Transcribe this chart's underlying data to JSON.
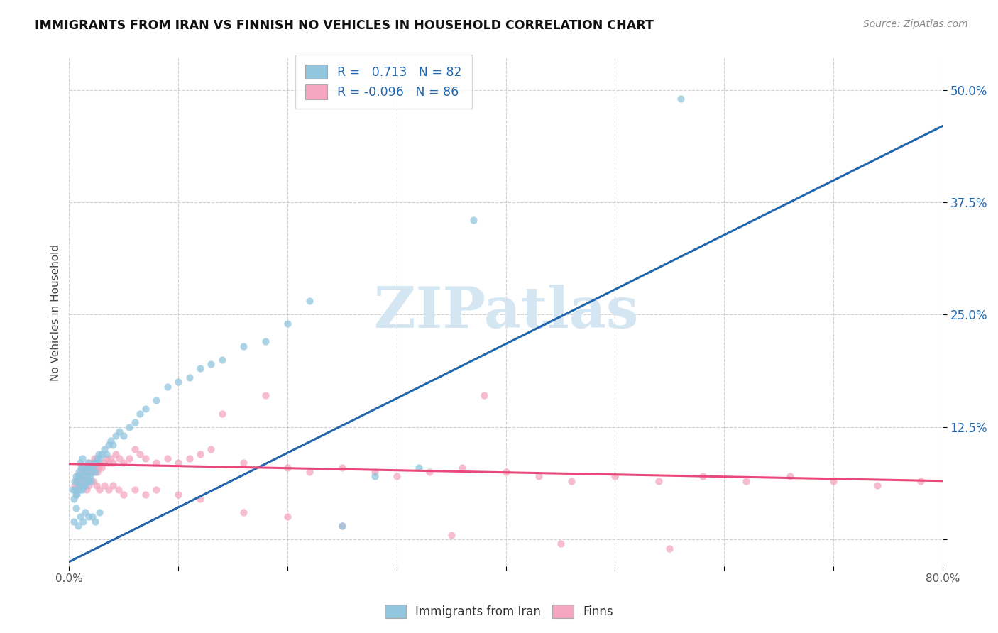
{
  "title": "IMMIGRANTS FROM IRAN VS FINNISH NO VEHICLES IN HOUSEHOLD CORRELATION CHART",
  "source": "Source: ZipAtlas.com",
  "ylabel": "No Vehicles in Household",
  "legend_label1": "Immigrants from Iran",
  "legend_label2": "Finns",
  "r1": 0.713,
  "n1": 82,
  "r2": -0.096,
  "n2": 86,
  "xmin": 0.0,
  "xmax": 0.8,
  "ymin": -0.03,
  "ymax": 0.535,
  "yticks": [
    0.0,
    0.125,
    0.25,
    0.375,
    0.5
  ],
  "ytick_labels": [
    "",
    "12.5%",
    "25.0%",
    "37.5%",
    "50.0%"
  ],
  "xtick_labels_positions": [
    0.0,
    0.8
  ],
  "xtick_labels_values": [
    "0.0%",
    "80.0%"
  ],
  "xtick_minor_positions": [
    0.1,
    0.2,
    0.3,
    0.4,
    0.5,
    0.6,
    0.7
  ],
  "color_iran": "#92c5de",
  "color_finn": "#f4a6c0",
  "trendline_iran_color": "#2166ac",
  "trendline_finn_color": "#e8497a",
  "scatter_alpha": 0.75,
  "dot_size": 55,
  "watermark_color": "#d5e6f3",
  "background_color": "#ffffff",
  "iran_trendline_x0": 0.0,
  "iran_trendline_y0": -0.025,
  "iran_trendline_x1": 0.8,
  "iran_trendline_y1": 0.46,
  "finn_trendline_x0": 0.0,
  "finn_trendline_y0": 0.084,
  "finn_trendline_x1": 0.8,
  "finn_trendline_y1": 0.065,
  "iran_x": [
    0.003,
    0.004,
    0.005,
    0.005,
    0.006,
    0.006,
    0.007,
    0.007,
    0.008,
    0.008,
    0.009,
    0.009,
    0.01,
    0.01,
    0.01,
    0.011,
    0.011,
    0.012,
    0.012,
    0.012,
    0.013,
    0.013,
    0.014,
    0.014,
    0.015,
    0.015,
    0.016,
    0.016,
    0.017,
    0.017,
    0.018,
    0.018,
    0.019,
    0.02,
    0.02,
    0.021,
    0.022,
    0.023,
    0.024,
    0.025,
    0.026,
    0.027,
    0.028,
    0.03,
    0.032,
    0.034,
    0.036,
    0.038,
    0.04,
    0.043,
    0.046,
    0.05,
    0.055,
    0.06,
    0.065,
    0.07,
    0.08,
    0.09,
    0.1,
    0.11,
    0.12,
    0.13,
    0.14,
    0.16,
    0.18,
    0.2,
    0.22,
    0.25,
    0.28,
    0.32,
    0.37,
    0.56,
    0.004,
    0.006,
    0.008,
    0.01,
    0.013,
    0.015,
    0.018,
    0.021,
    0.024,
    0.028
  ],
  "iran_y": [
    0.055,
    0.045,
    0.055,
    0.065,
    0.05,
    0.07,
    0.05,
    0.065,
    0.055,
    0.07,
    0.06,
    0.075,
    0.055,
    0.07,
    0.085,
    0.06,
    0.08,
    0.055,
    0.07,
    0.09,
    0.065,
    0.08,
    0.06,
    0.075,
    0.06,
    0.075,
    0.065,
    0.08,
    0.07,
    0.085,
    0.065,
    0.08,
    0.07,
    0.065,
    0.08,
    0.075,
    0.08,
    0.085,
    0.075,
    0.085,
    0.09,
    0.095,
    0.09,
    0.095,
    0.1,
    0.095,
    0.105,
    0.11,
    0.105,
    0.115,
    0.12,
    0.115,
    0.125,
    0.13,
    0.14,
    0.145,
    0.155,
    0.17,
    0.175,
    0.18,
    0.19,
    0.195,
    0.2,
    0.215,
    0.22,
    0.24,
    0.265,
    0.015,
    0.07,
    0.08,
    0.355,
    0.49,
    0.02,
    0.035,
    0.015,
    0.025,
    0.02,
    0.03,
    0.025,
    0.025,
    0.02,
    0.03
  ],
  "finn_x": [
    0.005,
    0.006,
    0.007,
    0.008,
    0.009,
    0.01,
    0.011,
    0.012,
    0.013,
    0.014,
    0.015,
    0.016,
    0.017,
    0.018,
    0.019,
    0.02,
    0.021,
    0.022,
    0.023,
    0.024,
    0.025,
    0.026,
    0.027,
    0.028,
    0.03,
    0.032,
    0.034,
    0.036,
    0.038,
    0.04,
    0.043,
    0.046,
    0.05,
    0.055,
    0.06,
    0.065,
    0.07,
    0.08,
    0.09,
    0.1,
    0.11,
    0.12,
    0.13,
    0.14,
    0.16,
    0.18,
    0.2,
    0.22,
    0.25,
    0.28,
    0.3,
    0.33,
    0.36,
    0.38,
    0.4,
    0.43,
    0.46,
    0.5,
    0.54,
    0.58,
    0.62,
    0.66,
    0.7,
    0.74,
    0.78,
    0.016,
    0.018,
    0.022,
    0.025,
    0.028,
    0.032,
    0.036,
    0.04,
    0.045,
    0.05,
    0.06,
    0.07,
    0.08,
    0.1,
    0.12,
    0.16,
    0.2,
    0.25,
    0.35,
    0.45,
    0.55
  ],
  "finn_y": [
    0.06,
    0.055,
    0.065,
    0.06,
    0.07,
    0.065,
    0.075,
    0.07,
    0.08,
    0.07,
    0.075,
    0.08,
    0.075,
    0.085,
    0.08,
    0.075,
    0.085,
    0.08,
    0.09,
    0.08,
    0.085,
    0.075,
    0.08,
    0.085,
    0.08,
    0.085,
    0.09,
    0.085,
    0.09,
    0.085,
    0.095,
    0.09,
    0.085,
    0.09,
    0.1,
    0.095,
    0.09,
    0.085,
    0.09,
    0.085,
    0.09,
    0.095,
    0.1,
    0.14,
    0.085,
    0.16,
    0.08,
    0.075,
    0.08,
    0.075,
    0.07,
    0.075,
    0.08,
    0.16,
    0.075,
    0.07,
    0.065,
    0.07,
    0.065,
    0.07,
    0.065,
    0.07,
    0.065,
    0.06,
    0.065,
    0.055,
    0.06,
    0.065,
    0.06,
    0.055,
    0.06,
    0.055,
    0.06,
    0.055,
    0.05,
    0.055,
    0.05,
    0.055,
    0.05,
    0.045,
    0.03,
    0.025,
    0.015,
    0.005,
    -0.005,
    -0.01
  ]
}
